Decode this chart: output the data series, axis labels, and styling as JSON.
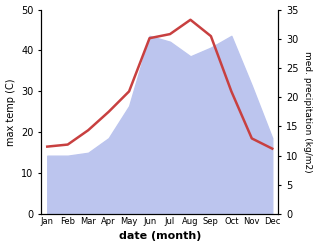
{
  "months": [
    "Jan",
    "Feb",
    "Mar",
    "Apr",
    "May",
    "Jun",
    "Jul",
    "Aug",
    "Sep",
    "Oct",
    "Nov",
    "Dec"
  ],
  "max_temp": [
    16.5,
    17.0,
    20.5,
    25.0,
    30.0,
    43.0,
    44.0,
    47.5,
    43.5,
    30.0,
    18.5,
    16.0
  ],
  "precipitation": [
    10.0,
    10.0,
    10.5,
    13.0,
    18.5,
    30.5,
    29.5,
    27.0,
    28.5,
    30.5,
    22.0,
    13.0
  ],
  "temp_color": "#c84040",
  "precip_fill_color": "#bcc5ee",
  "temp_ylim": [
    0,
    50
  ],
  "precip_ylim": [
    0,
    35
  ],
  "temp_yticks": [
    0,
    10,
    20,
    30,
    40,
    50
  ],
  "precip_yticks": [
    0,
    5,
    10,
    15,
    20,
    25,
    30,
    35
  ],
  "ylabel_left": "max temp (C)",
  "ylabel_right": "med. precipitation (kg/m2)",
  "xlabel": "date (month)",
  "bg_color": "#ffffff"
}
